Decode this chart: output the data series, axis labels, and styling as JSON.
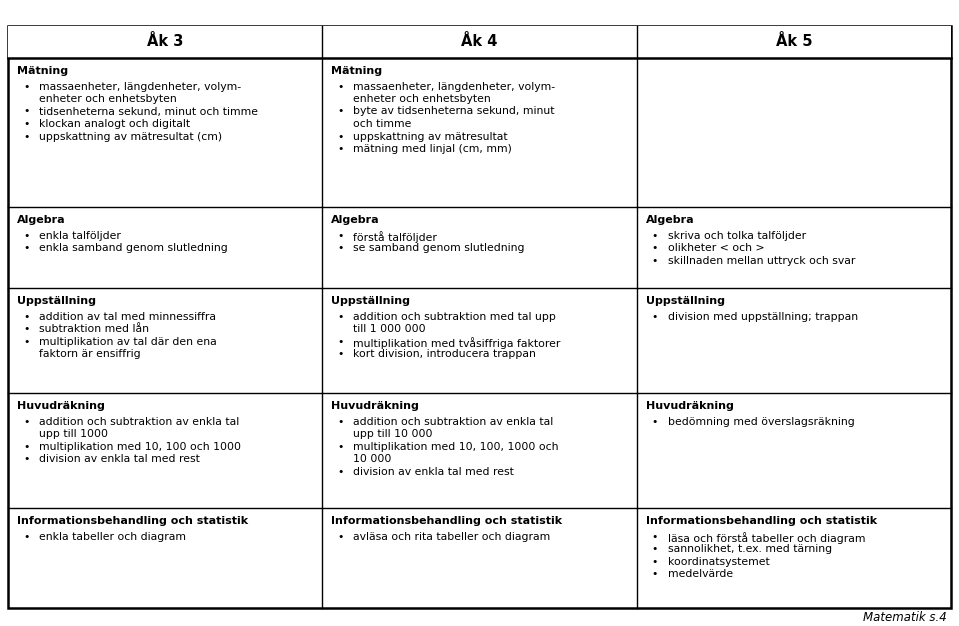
{
  "title_row": [
    "Åk 3",
    "Åk 4",
    "Åk 5"
  ],
  "background_color": "#ffffff",
  "border_color": "#000000",
  "text_color": "#000000",
  "footer_text": "Matematik s.4",
  "sections": [
    {
      "row": 0,
      "cols": [
        {
          "col": 0,
          "header": "Mätning",
          "bullets": [
            "massaenheter, längdenheter, volym-\nenheter och enhetsbyten",
            "tidsenheterna sekund, minut och timme",
            "klockan analogt och digitalt",
            "uppskattning av mätresultat (cm)"
          ]
        },
        {
          "col": 1,
          "header": "Mätning",
          "bullets": [
            "massaenheter, längdenheter, volym-\nenheter och enhetsbyten",
            "byte av tidsenheterna sekund, minut\noch timme",
            "uppskattning av mätresultat",
            "mätning med linjal (cm, mm)"
          ]
        },
        {
          "col": 2,
          "header": "",
          "bullets": []
        }
      ]
    },
    {
      "row": 1,
      "cols": [
        {
          "col": 0,
          "header": "Algebra",
          "bullets": [
            "enkla talföljder",
            "enkla samband genom slutledning"
          ]
        },
        {
          "col": 1,
          "header": "Algebra",
          "bullets": [
            "förstå talföljder",
            "se samband genom slutledning"
          ]
        },
        {
          "col": 2,
          "header": "Algebra",
          "bullets": [
            "skriva och tolka talföljder",
            "olikheter < och >",
            "skillnaden mellan uttryck och svar"
          ]
        }
      ]
    },
    {
      "row": 2,
      "cols": [
        {
          "col": 0,
          "header": "Uppställning",
          "bullets": [
            "addition av tal med minnessiffra",
            "subtraktion med lån",
            "multiplikation av tal där den ena\nfaktorn är ensiffrig"
          ]
        },
        {
          "col": 1,
          "header": "Uppställning",
          "bullets": [
            "addition och subtraktion med tal upp\ntill 1 000 000",
            "multiplikation med tvåsiffriga faktorer",
            "kort division, introducera trappan"
          ]
        },
        {
          "col": 2,
          "header": "Uppställning",
          "bullets": [
            "division med uppställning; trappan"
          ]
        }
      ]
    },
    {
      "row": 3,
      "cols": [
        {
          "col": 0,
          "header": "Huvudräkning",
          "bullets": [
            "addition och subtraktion av enkla tal\nupp till 1000",
            "multiplikation med 10, 100 och 1000",
            "division av enkla tal med rest"
          ]
        },
        {
          "col": 1,
          "header": "Huvudräkning",
          "bullets": [
            "addition och subtraktion av enkla tal\nupp till 10 000",
            "multiplikation med 10, 100, 1000 och\n10 000",
            "division av enkla tal med rest"
          ]
        },
        {
          "col": 2,
          "header": "Huvudräkning",
          "bullets": [
            "bedömning med överslagsräkning"
          ]
        }
      ]
    },
    {
      "row": 4,
      "cols": [
        {
          "col": 0,
          "header": "Informationsbehandling och statistik",
          "bullets": [
            "enkla tabeller och diagram"
          ]
        },
        {
          "col": 1,
          "header": "Informationsbehandling och statistik",
          "bullets": [
            "avläsa och rita tabeller och diagram"
          ]
        },
        {
          "col": 2,
          "header": "Informationsbehandling och statistik",
          "bullets": [
            "läsa och förstå tabeller och diagram",
            "sannolikhet, t.ex. med tärning",
            "koordinatsystemet",
            "medelvärde"
          ]
        }
      ]
    }
  ]
}
